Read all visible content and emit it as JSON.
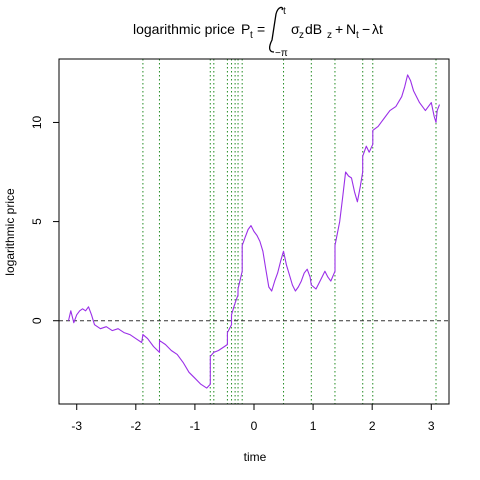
{
  "chart_data": {
    "type": "line",
    "title": {
      "main": "logarithmic price",
      "p": "P",
      "p_sub": "t",
      "equals": "=",
      "int_upper": "t",
      "int_lower": "−π",
      "sigma": "σ",
      "sigma_sub": "z",
      "d": "dB",
      "b_sub": "z",
      "plus": "+",
      "n": "N",
      "n_sub": "t",
      "minus": "−",
      "lambda_t": "λt"
    },
    "xlabel": "time",
    "ylabel": "logarithmic price",
    "xlim": [
      -3.3,
      3.3
    ],
    "ylim": [
      -4.2,
      13.2
    ],
    "xticks": [
      -3,
      -2,
      -1,
      0,
      1,
      2,
      3
    ],
    "yticks": [
      0,
      5,
      10
    ],
    "reference_line": {
      "y": 0,
      "style": "dashed",
      "color": "#333333"
    },
    "jump_lines": {
      "color": "#228B22",
      "style": "dotted",
      "x": [
        -1.88,
        -1.6,
        -0.74,
        -0.68,
        -0.45,
        -0.38,
        -0.32,
        -0.27,
        -0.2,
        0.5,
        0.97,
        1.37,
        1.84,
        2.01,
        3.08
      ]
    },
    "series": [
      {
        "color": "#9B30E8",
        "points": [
          [
            -3.14,
            0.0
          ],
          [
            -3.1,
            0.5
          ],
          [
            -3.05,
            -0.1
          ],
          [
            -3.0,
            0.3
          ],
          [
            -2.95,
            0.5
          ],
          [
            -2.9,
            0.6
          ],
          [
            -2.85,
            0.5
          ],
          [
            -2.8,
            0.7
          ],
          [
            -2.75,
            0.3
          ],
          [
            -2.7,
            -0.2
          ],
          [
            -2.6,
            -0.4
          ],
          [
            -2.5,
            -0.3
          ],
          [
            -2.4,
            -0.5
          ],
          [
            -2.3,
            -0.4
          ],
          [
            -2.2,
            -0.6
          ],
          [
            -2.1,
            -0.7
          ],
          [
            -2.0,
            -0.9
          ],
          [
            -1.9,
            -1.1
          ],
          [
            -1.88,
            -0.7
          ],
          [
            -1.8,
            -0.9
          ],
          [
            -1.7,
            -1.3
          ],
          [
            -1.6,
            -1.6
          ],
          [
            -1.6,
            -1.0
          ],
          [
            -1.5,
            -1.2
          ],
          [
            -1.4,
            -1.5
          ],
          [
            -1.3,
            -1.7
          ],
          [
            -1.2,
            -2.1
          ],
          [
            -1.1,
            -2.6
          ],
          [
            -1.0,
            -2.9
          ],
          [
            -0.9,
            -3.2
          ],
          [
            -0.8,
            -3.4
          ],
          [
            -0.74,
            -3.2
          ],
          [
            -0.74,
            -1.8
          ],
          [
            -0.68,
            -1.6
          ],
          [
            -0.6,
            -1.5
          ],
          [
            -0.5,
            -1.3
          ],
          [
            -0.45,
            -1.2
          ],
          [
            -0.45,
            -0.6
          ],
          [
            -0.38,
            -0.2
          ],
          [
            -0.38,
            0.3
          ],
          [
            -0.32,
            0.9
          ],
          [
            -0.27,
            1.3
          ],
          [
            -0.27,
            1.6
          ],
          [
            -0.2,
            2.5
          ],
          [
            -0.2,
            3.8
          ],
          [
            -0.15,
            4.2
          ],
          [
            -0.1,
            4.6
          ],
          [
            -0.05,
            4.8
          ],
          [
            0.0,
            4.5
          ],
          [
            0.05,
            4.3
          ],
          [
            0.1,
            4.0
          ],
          [
            0.15,
            3.5
          ],
          [
            0.2,
            2.6
          ],
          [
            0.25,
            1.7
          ],
          [
            0.3,
            1.5
          ],
          [
            0.35,
            2.0
          ],
          [
            0.4,
            2.4
          ],
          [
            0.45,
            3.0
          ],
          [
            0.5,
            3.5
          ],
          [
            0.55,
            2.8
          ],
          [
            0.6,
            2.3
          ],
          [
            0.65,
            1.8
          ],
          [
            0.7,
            1.5
          ],
          [
            0.75,
            1.7
          ],
          [
            0.8,
            2.0
          ],
          [
            0.85,
            2.4
          ],
          [
            0.9,
            2.6
          ],
          [
            0.95,
            2.2
          ],
          [
            0.97,
            1.8
          ],
          [
            1.05,
            1.6
          ],
          [
            1.1,
            1.9
          ],
          [
            1.15,
            2.2
          ],
          [
            1.2,
            2.5
          ],
          [
            1.25,
            2.2
          ],
          [
            1.3,
            2.0
          ],
          [
            1.37,
            2.5
          ],
          [
            1.37,
            3.8
          ],
          [
            1.45,
            5.0
          ],
          [
            1.5,
            6.2
          ],
          [
            1.55,
            7.5
          ],
          [
            1.6,
            7.3
          ],
          [
            1.65,
            7.2
          ],
          [
            1.7,
            6.5
          ],
          [
            1.75,
            6.0
          ],
          [
            1.8,
            6.8
          ],
          [
            1.84,
            7.5
          ],
          [
            1.84,
            8.3
          ],
          [
            1.9,
            8.8
          ],
          [
            1.95,
            8.5
          ],
          [
            2.01,
            8.9
          ],
          [
            2.01,
            9.6
          ],
          [
            2.1,
            9.8
          ],
          [
            2.2,
            10.2
          ],
          [
            2.3,
            10.6
          ],
          [
            2.4,
            10.8
          ],
          [
            2.5,
            11.3
          ],
          [
            2.55,
            11.8
          ],
          [
            2.6,
            12.4
          ],
          [
            2.65,
            12.1
          ],
          [
            2.7,
            11.6
          ],
          [
            2.8,
            11.0
          ],
          [
            2.9,
            10.6
          ],
          [
            3.0,
            11.0
          ],
          [
            3.05,
            10.3
          ],
          [
            3.08,
            10.0
          ],
          [
            3.1,
            10.6
          ],
          [
            3.14,
            10.9
          ]
        ]
      }
    ]
  }
}
